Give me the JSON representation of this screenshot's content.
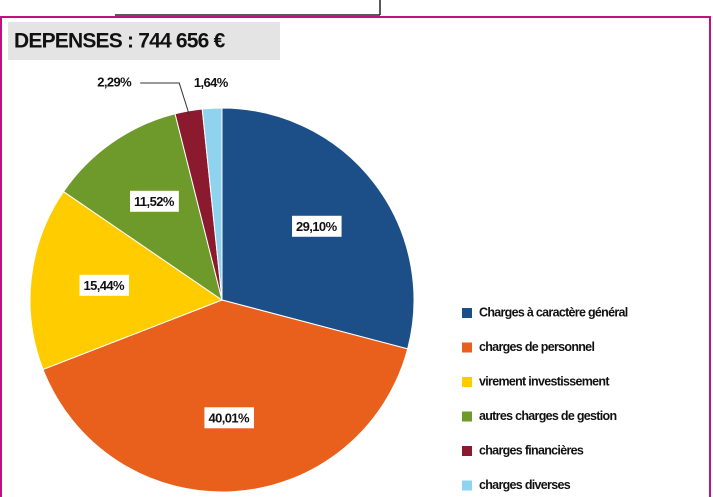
{
  "chart_data": {
    "type": "pie",
    "title": "DEPENSES : 744 656 €",
    "categories": [
      "Charges à caractère général",
      "charges de personnel",
      "virement investissement",
      "autres charges de gestion",
      "charges financières",
      "charges diverses"
    ],
    "values": [
      29.1,
      40.01,
      15.44,
      11.52,
      2.29,
      1.64
    ],
    "value_labels": [
      "29,10%",
      "40,01%",
      "15,44%",
      "11,52%",
      "2,29%",
      "1,64%"
    ],
    "colors": [
      "#1c4f88",
      "#e8601c",
      "#ffcc00",
      "#6e9a2c",
      "#8b1a2e",
      "#8fd3ee"
    ]
  }
}
